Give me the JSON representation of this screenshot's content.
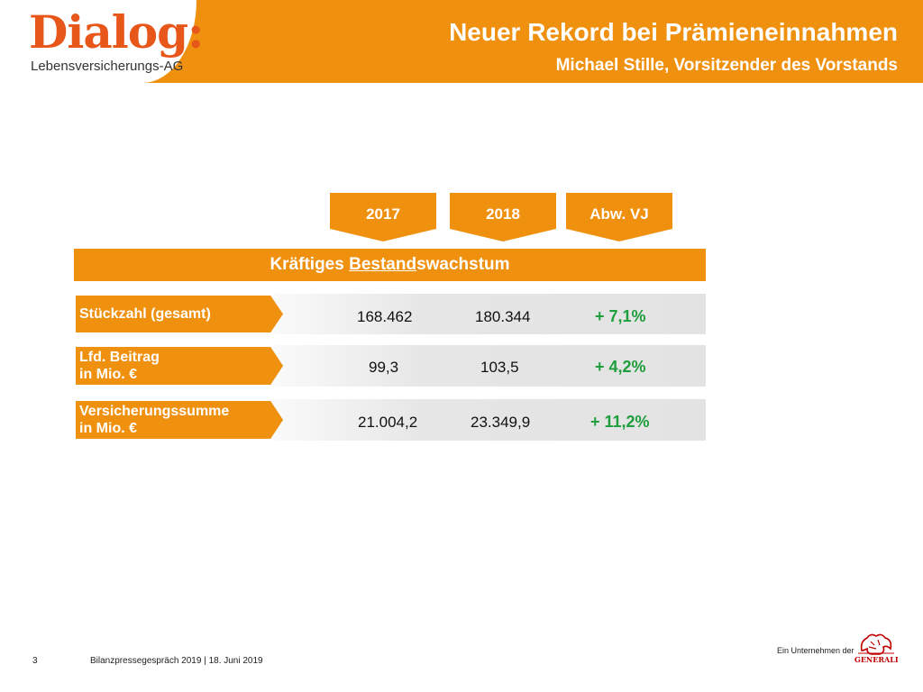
{
  "header": {
    "logo_word": "Dialog:",
    "logo_sub": "Lebensversicherungs-AG",
    "title": "Neuer Rekord bei Prämieneinnahmen",
    "subtitle": "Michael Stille, Vorsitzender des Vorstands"
  },
  "columns": [
    "2017",
    "2018",
    "Abw. VJ"
  ],
  "banner": {
    "prefix": "Kräftiges ",
    "underlined": "Bestand",
    "suffix": "swachstum"
  },
  "rows": [
    {
      "label_line1": "Stückzahl (gesamt)",
      "label_line2": "",
      "v2017": "168.462",
      "v2018": "180.344",
      "abw": "+ 7,1%"
    },
    {
      "label_line1": "Lfd. Beitrag",
      "label_line2": "in Mio. €",
      "v2017": "99,3",
      "v2018": "103,5",
      "abw": "+ 4,2%"
    },
    {
      "label_line1": "Versicherungssumme",
      "label_line2": "in Mio. €",
      "v2017": "21.004,2",
      "v2018": "23.349,9",
      "abw": "+ 11,2%"
    }
  ],
  "footer": {
    "page": "3",
    "text": "Bilanzpressegespräch 2019  | 18. Juni 2019",
    "company": "Ein Unternehmen der",
    "generali": "GENERALI"
  },
  "colors": {
    "accent": "#f0900f",
    "logo": "#e8571a",
    "positive": "#1e9e3c"
  }
}
